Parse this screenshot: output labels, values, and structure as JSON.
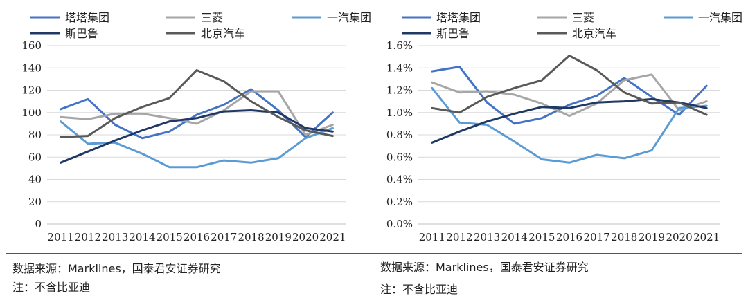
{
  "chart_data": [
    {
      "type": "line",
      "title": "",
      "xlabel": "",
      "ylabel": "",
      "x": [
        "2011",
        "2012",
        "2013",
        "2014",
        "2015",
        "2016",
        "2017",
        "2018",
        "2019",
        "2020",
        "2021"
      ],
      "ylim": [
        0,
        160
      ],
      "yticks": [
        0,
        20,
        40,
        60,
        80,
        100,
        120,
        140,
        160
      ],
      "ytick_labels": [
        "0",
        "20",
        "40",
        "60",
        "80",
        "100",
        "120",
        "140",
        "160"
      ],
      "grid": true,
      "legend": "top",
      "series": [
        {
          "name": "塔塔集团",
          "color": "#4472c4",
          "values": [
            103,
            112,
            89,
            77,
            83,
            98,
            107,
            121,
            102,
            78,
            100
          ]
        },
        {
          "name": "三菱",
          "color": "#a6a6a6",
          "values": [
            96,
            94,
            99,
            99,
            95,
            90,
            102,
            119,
            119,
            80,
            89
          ]
        },
        {
          "name": "一汽集团",
          "color": "#5b9bd5",
          "values": [
            92,
            72,
            73,
            63,
            51,
            51,
            57,
            55,
            59,
            77,
            86
          ]
        },
        {
          "name": "斯巴鲁",
          "color": "#1f3864",
          "values": [
            55,
            65,
            75,
            84,
            92,
            95,
            101,
            102,
            100,
            86,
            83
          ]
        },
        {
          "name": "北京汽车",
          "color": "#595959",
          "values": [
            78,
            79,
            95,
            105,
            113,
            138,
            128,
            110,
            96,
            84,
            79
          ]
        }
      ]
    },
    {
      "type": "line",
      "title": "",
      "xlabel": "",
      "ylabel": "",
      "x": [
        "2011",
        "2012",
        "2013",
        "2014",
        "2015",
        "2016",
        "2017",
        "2018",
        "2019",
        "2020",
        "2021"
      ],
      "ylim": [
        0,
        1.6
      ],
      "yticks": [
        0,
        0.2,
        0.4,
        0.6,
        0.8,
        1.0,
        1.2,
        1.4,
        1.6
      ],
      "ytick_labels": [
        "0.0%",
        "0.2%",
        "0.4%",
        "0.6%",
        "0.8%",
        "1.0%",
        "1.2%",
        "1.4%",
        "1.6%"
      ],
      "grid": true,
      "legend": "top",
      "series": [
        {
          "name": "塔塔集团",
          "color": "#4472c4",
          "values": [
            1.37,
            1.41,
            1.09,
            0.9,
            0.95,
            1.07,
            1.15,
            1.31,
            1.14,
            0.98,
            1.24
          ]
        },
        {
          "name": "三菱",
          "color": "#a6a6a6",
          "values": [
            1.27,
            1.18,
            1.19,
            1.16,
            1.08,
            0.97,
            1.08,
            1.29,
            1.34,
            1.02,
            1.1
          ]
        },
        {
          "name": "一汽集团",
          "color": "#5b9bd5",
          "values": [
            1.22,
            0.91,
            0.89,
            0.74,
            0.58,
            0.55,
            0.62,
            0.59,
            0.66,
            1.04,
            1.06
          ]
        },
        {
          "name": "斯巴鲁",
          "color": "#1f3864",
          "values": [
            0.73,
            0.83,
            0.92,
            0.99,
            1.05,
            1.04,
            1.09,
            1.1,
            1.12,
            1.09,
            1.04
          ]
        },
        {
          "name": "北京汽车",
          "color": "#595959",
          "values": [
            1.04,
            1.0,
            1.14,
            1.22,
            1.29,
            1.51,
            1.38,
            1.18,
            1.08,
            1.09,
            0.98
          ]
        }
      ]
    }
  ],
  "footnotes": {
    "left_source": "数据来源：Marklines，国泰君安证券研究",
    "left_note": "注：不含比亚迪",
    "right_source": "数据来源：Marklines，国泰君安证券研究",
    "right_note": "注：不含比亚迪"
  }
}
